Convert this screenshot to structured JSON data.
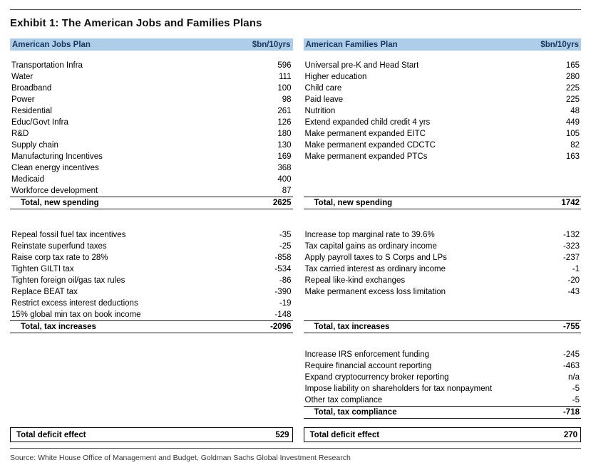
{
  "exhibit": {
    "title": "Exhibit 1: The American Jobs and Families Plans",
    "source": "Source: White House Office of Management and Budget, Goldman Sachs Global Investment Research"
  },
  "colors": {
    "header_bg": "#aecde8",
    "header_text": "#17375e",
    "rule": "#4d4d4d",
    "text": "#000000"
  },
  "jobs": {
    "header": "American Jobs Plan",
    "unit": "$bn/10yrs",
    "spending": [
      {
        "label": "Transportation Infra",
        "value": "596"
      },
      {
        "label": "Water",
        "value": "111"
      },
      {
        "label": "Broadband",
        "value": "100"
      },
      {
        "label": "Power",
        "value": "98"
      },
      {
        "label": "Residential",
        "value": "261"
      },
      {
        "label": "Educ/Govt Infra",
        "value": "126"
      },
      {
        "label": "R&D",
        "value": "180"
      },
      {
        "label": "Supply chain",
        "value": "130"
      },
      {
        "label": "Manufacturing Incentives",
        "value": "169"
      },
      {
        "label": "Clean energy incentives",
        "value": "368"
      },
      {
        "label": "Medicaid",
        "value": "400"
      },
      {
        "label": "Workforce development",
        "value": "87"
      }
    ],
    "spending_total": {
      "label": "Total, new spending",
      "value": "2625"
    },
    "taxes": [
      {
        "label": "Repeal fossil fuel tax incentives",
        "value": "-35"
      },
      {
        "label": "Reinstate superfund taxes",
        "value": "-25"
      },
      {
        "label": "Raise corp tax rate to 28%",
        "value": "-858"
      },
      {
        "label": "Tighten GILTI tax",
        "value": "-534"
      },
      {
        "label": "Tighten foreign oil/gas tax rules",
        "value": "-86"
      },
      {
        "label": "Replace BEAT tax",
        "value": "-390"
      },
      {
        "label": "Restrict excess interest deductions",
        "value": "-19"
      },
      {
        "label": "15% global min tax on book income",
        "value": "-148"
      }
    ],
    "taxes_total": {
      "label": "Total, tax increases",
      "value": "-2096"
    },
    "deficit": {
      "label": "Total deficit effect",
      "value": "529"
    }
  },
  "families": {
    "header": "American Families Plan",
    "unit": "$bn/10yrs",
    "spending": [
      {
        "label": "Universal pre-K and Head Start",
        "value": "165"
      },
      {
        "label": "Higher education",
        "value": "280"
      },
      {
        "label": "Child care",
        "value": "225"
      },
      {
        "label": "Paid leave",
        "value": "225"
      },
      {
        "label": "Nutrition",
        "value": "48"
      },
      {
        "label": "Extend expanded child credit 4 yrs",
        "value": "449"
      },
      {
        "label": "Make permanent expanded EITC",
        "value": "105"
      },
      {
        "label": "Make permanent expanded CDCTC",
        "value": "82"
      },
      {
        "label": "Make permanent expanded PTCs",
        "value": "163"
      }
    ],
    "spending_total": {
      "label": "Total, new spending",
      "value": "1742"
    },
    "taxes": [
      {
        "label": "Increase top marginal rate to 39.6%",
        "value": "-132"
      },
      {
        "label": "Tax capital gains as ordinary income",
        "value": "-323"
      },
      {
        "label": "Apply payroll taxes to S Corps and LPs",
        "value": "-237"
      },
      {
        "label": "Tax carried interest as ordinary income",
        "value": "-1"
      },
      {
        "label": "Repeal like-kind exchanges",
        "value": "-20"
      },
      {
        "label": "Make permanent excess loss limitation",
        "value": "-43"
      }
    ],
    "taxes_total": {
      "label": "Total, tax increases",
      "value": "-755"
    },
    "compliance": [
      {
        "label": "Increase IRS enforcement funding",
        "value": "-245"
      },
      {
        "label": "Require financial account reporting",
        "value": "-463"
      },
      {
        "label": "Expand cryptocurrency broker reporting",
        "value": "n/a"
      },
      {
        "label": "Impose liability on shareholders for tax nonpayment",
        "value": "-5"
      },
      {
        "label": "Other tax compliance",
        "value": "-5"
      }
    ],
    "compliance_total": {
      "label": "Total, tax compliance",
      "value": "-718"
    },
    "deficit": {
      "label": "Total deficit effect",
      "value": "270"
    }
  }
}
